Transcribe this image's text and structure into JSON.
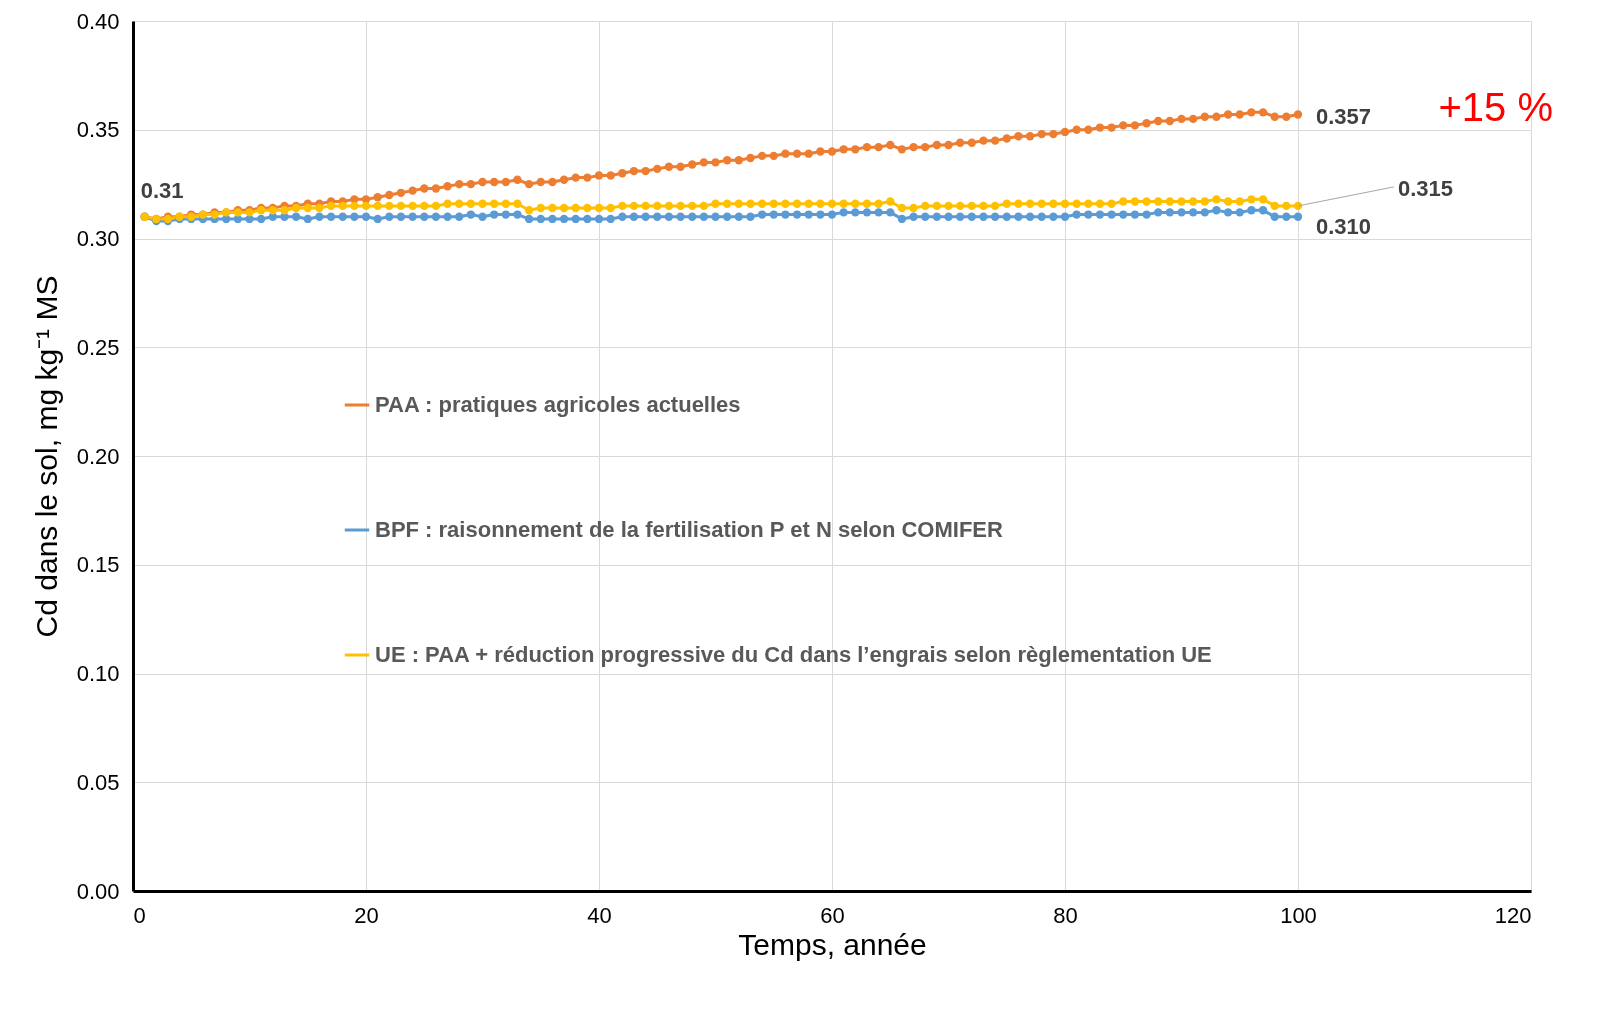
{
  "chart_data": {
    "type": "line",
    "xlabel": "Temps, année",
    "ylabel": "Cd dans le sol, mg kg⁻¹ MS",
    "xlim": [
      0,
      120
    ],
    "xticks": [
      0,
      20,
      40,
      60,
      80,
      100,
      120
    ],
    "ylim": [
      0,
      0.4
    ],
    "yticks": [
      {
        "value": 0,
        "label": "0.00"
      },
      {
        "value": 0.05,
        "label": "0.05"
      },
      {
        "value": 0.1,
        "label": "0.10"
      },
      {
        "value": 0.15,
        "label": "0.15"
      },
      {
        "value": 0.2,
        "label": "0.20"
      },
      {
        "value": 0.25,
        "label": "0.25"
      },
      {
        "value": 0.3,
        "label": "0.30"
      },
      {
        "value": 0.35,
        "label": "0.35"
      },
      {
        "value": 0.4,
        "label": "0.40"
      }
    ],
    "grid": true,
    "legend": "left",
    "marker": "circle",
    "line_style": "solid",
    "x": [
      1,
      2,
      3,
      4,
      5,
      6,
      7,
      8,
      9,
      10,
      11,
      12,
      13,
      14,
      15,
      16,
      17,
      18,
      19,
      20,
      21,
      22,
      23,
      24,
      25,
      26,
      27,
      28,
      29,
      30,
      31,
      32,
      33,
      34,
      35,
      36,
      37,
      38,
      39,
      40,
      41,
      42,
      43,
      44,
      45,
      46,
      47,
      48,
      49,
      50,
      51,
      52,
      53,
      54,
      55,
      56,
      57,
      58,
      59,
      60,
      61,
      62,
      63,
      64,
      65,
      66,
      67,
      68,
      69,
      70,
      71,
      72,
      73,
      74,
      75,
      76,
      77,
      78,
      79,
      80,
      81,
      82,
      83,
      84,
      85,
      86,
      87,
      88,
      89,
      90,
      91,
      92,
      93,
      94,
      95,
      96,
      97,
      98,
      99,
      100
    ],
    "series": [
      {
        "name": "PAA : pratiques agricoles actuelles",
        "color": "#ed7d31",
        "values": [
          0.31,
          0.309,
          0.31,
          0.31,
          0.311,
          0.311,
          0.312,
          0.312,
          0.313,
          0.313,
          0.314,
          0.314,
          0.315,
          0.315,
          0.316,
          0.316,
          0.317,
          0.317,
          0.318,
          0.318,
          0.319,
          0.32,
          0.321,
          0.322,
          0.323,
          0.323,
          0.324,
          0.325,
          0.325,
          0.326,
          0.326,
          0.326,
          0.327,
          0.325,
          0.326,
          0.326,
          0.327,
          0.328,
          0.328,
          0.329,
          0.329,
          0.33,
          0.331,
          0.331,
          0.332,
          0.333,
          0.333,
          0.334,
          0.335,
          0.335,
          0.336,
          0.336,
          0.337,
          0.338,
          0.338,
          0.339,
          0.339,
          0.339,
          0.34,
          0.34,
          0.341,
          0.341,
          0.342,
          0.342,
          0.343,
          0.341,
          0.342,
          0.342,
          0.343,
          0.343,
          0.344,
          0.344,
          0.345,
          0.345,
          0.346,
          0.347,
          0.347,
          0.348,
          0.348,
          0.349,
          0.35,
          0.35,
          0.351,
          0.351,
          0.352,
          0.352,
          0.353,
          0.354,
          0.354,
          0.355,
          0.355,
          0.356,
          0.356,
          0.357,
          0.357,
          0.358,
          0.358,
          0.356,
          0.356,
          0.357
        ],
        "value_labels": [
          "0.31",
          null,
          null,
          null,
          null,
          null,
          null,
          null,
          null,
          null,
          null,
          null,
          null,
          null,
          null,
          null,
          null,
          null,
          null,
          null,
          null,
          null,
          null,
          null,
          null,
          null,
          null,
          null,
          null,
          null,
          null,
          null,
          null,
          null,
          null,
          null,
          null,
          null,
          null,
          null,
          null,
          null,
          null,
          null,
          null,
          null,
          null,
          null,
          null,
          null,
          null,
          null,
          null,
          null,
          null,
          null,
          null,
          null,
          null,
          null,
          null,
          null,
          null,
          null,
          null,
          null,
          null,
          null,
          null,
          null,
          null,
          null,
          null,
          null,
          null,
          null,
          null,
          null,
          null,
          null,
          null,
          null,
          null,
          null,
          null,
          null,
          null,
          null,
          null,
          null,
          null,
          null,
          null,
          null,
          null,
          null,
          null,
          null,
          null,
          "0.357"
        ]
      },
      {
        "name": "BPF : raisonnement de la fertilisation P et N selon COMIFER",
        "color": "#5b9bd5",
        "values": [
          0.31,
          0.308,
          0.308,
          0.309,
          0.309,
          0.309,
          0.309,
          0.309,
          0.309,
          0.309,
          0.309,
          0.31,
          0.31,
          0.31,
          0.309,
          0.31,
          0.31,
          0.31,
          0.31,
          0.31,
          0.309,
          0.31,
          0.31,
          0.31,
          0.31,
          0.31,
          0.31,
          0.31,
          0.311,
          0.31,
          0.311,
          0.311,
          0.311,
          0.309,
          0.309,
          0.309,
          0.309,
          0.309,
          0.309,
          0.309,
          0.309,
          0.31,
          0.31,
          0.31,
          0.31,
          0.31,
          0.31,
          0.31,
          0.31,
          0.31,
          0.31,
          0.31,
          0.31,
          0.311,
          0.311,
          0.311,
          0.311,
          0.311,
          0.311,
          0.311,
          0.312,
          0.312,
          0.312,
          0.312,
          0.312,
          0.309,
          0.31,
          0.31,
          0.31,
          0.31,
          0.31,
          0.31,
          0.31,
          0.31,
          0.31,
          0.31,
          0.31,
          0.31,
          0.31,
          0.31,
          0.311,
          0.311,
          0.311,
          0.311,
          0.311,
          0.311,
          0.311,
          0.312,
          0.312,
          0.312,
          0.312,
          0.312,
          0.313,
          0.312,
          0.312,
          0.313,
          0.313,
          0.31,
          0.31,
          0.31
        ],
        "value_labels": [
          null,
          null,
          null,
          null,
          null,
          null,
          null,
          null,
          null,
          null,
          null,
          null,
          null,
          null,
          null,
          null,
          null,
          null,
          null,
          null,
          null,
          null,
          null,
          null,
          null,
          null,
          null,
          null,
          null,
          null,
          null,
          null,
          null,
          null,
          null,
          null,
          null,
          null,
          null,
          null,
          null,
          null,
          null,
          null,
          null,
          null,
          null,
          null,
          null,
          null,
          null,
          null,
          null,
          null,
          null,
          null,
          null,
          null,
          null,
          null,
          null,
          null,
          null,
          null,
          null,
          null,
          null,
          null,
          null,
          null,
          null,
          null,
          null,
          null,
          null,
          null,
          null,
          null,
          null,
          null,
          null,
          null,
          null,
          null,
          null,
          null,
          null,
          null,
          null,
          null,
          null,
          null,
          null,
          null,
          null,
          null,
          null,
          null,
          null,
          "0.310"
        ]
      },
      {
        "name": "UE : PAA + réduction progressive du Cd dans l’engrais selon règlementation UE",
        "color": "#ffc000",
        "values": [
          0.31,
          0.309,
          0.309,
          0.31,
          0.31,
          0.311,
          0.311,
          0.312,
          0.312,
          0.312,
          0.313,
          0.313,
          0.313,
          0.314,
          0.314,
          0.314,
          0.315,
          0.315,
          0.315,
          0.315,
          0.315,
          0.315,
          0.315,
          0.315,
          0.315,
          0.315,
          0.316,
          0.316,
          0.316,
          0.316,
          0.316,
          0.316,
          0.316,
          0.313,
          0.314,
          0.314,
          0.314,
          0.314,
          0.314,
          0.314,
          0.314,
          0.315,
          0.315,
          0.315,
          0.315,
          0.315,
          0.315,
          0.315,
          0.315,
          0.316,
          0.316,
          0.316,
          0.316,
          0.316,
          0.316,
          0.316,
          0.316,
          0.316,
          0.316,
          0.316,
          0.316,
          0.316,
          0.316,
          0.316,
          0.317,
          0.314,
          0.314,
          0.315,
          0.315,
          0.315,
          0.315,
          0.315,
          0.315,
          0.315,
          0.316,
          0.316,
          0.316,
          0.316,
          0.316,
          0.316,
          0.316,
          0.316,
          0.316,
          0.316,
          0.317,
          0.317,
          0.317,
          0.317,
          0.317,
          0.317,
          0.317,
          0.317,
          0.318,
          0.317,
          0.317,
          0.318,
          0.318,
          0.315,
          0.315,
          0.315
        ],
        "value_labels": [
          null,
          null,
          null,
          null,
          null,
          null,
          null,
          null,
          null,
          null,
          null,
          null,
          null,
          null,
          null,
          null,
          null,
          null,
          null,
          null,
          null,
          null,
          null,
          null,
          null,
          null,
          null,
          null,
          null,
          null,
          null,
          null,
          null,
          null,
          null,
          null,
          null,
          null,
          null,
          null,
          null,
          null,
          null,
          null,
          null,
          null,
          null,
          null,
          null,
          null,
          null,
          null,
          null,
          null,
          null,
          null,
          null,
          null,
          null,
          null,
          null,
          null,
          null,
          null,
          null,
          null,
          null,
          null,
          null,
          null,
          null,
          null,
          null,
          null,
          null,
          null,
          null,
          null,
          null,
          null,
          null,
          null,
          null,
          null,
          null,
          null,
          null,
          null,
          null,
          null,
          null,
          null,
          null,
          null,
          null,
          null,
          null,
          null,
          null,
          "0.315"
        ]
      }
    ],
    "annotations": [
      "+15 %"
    ]
  }
}
